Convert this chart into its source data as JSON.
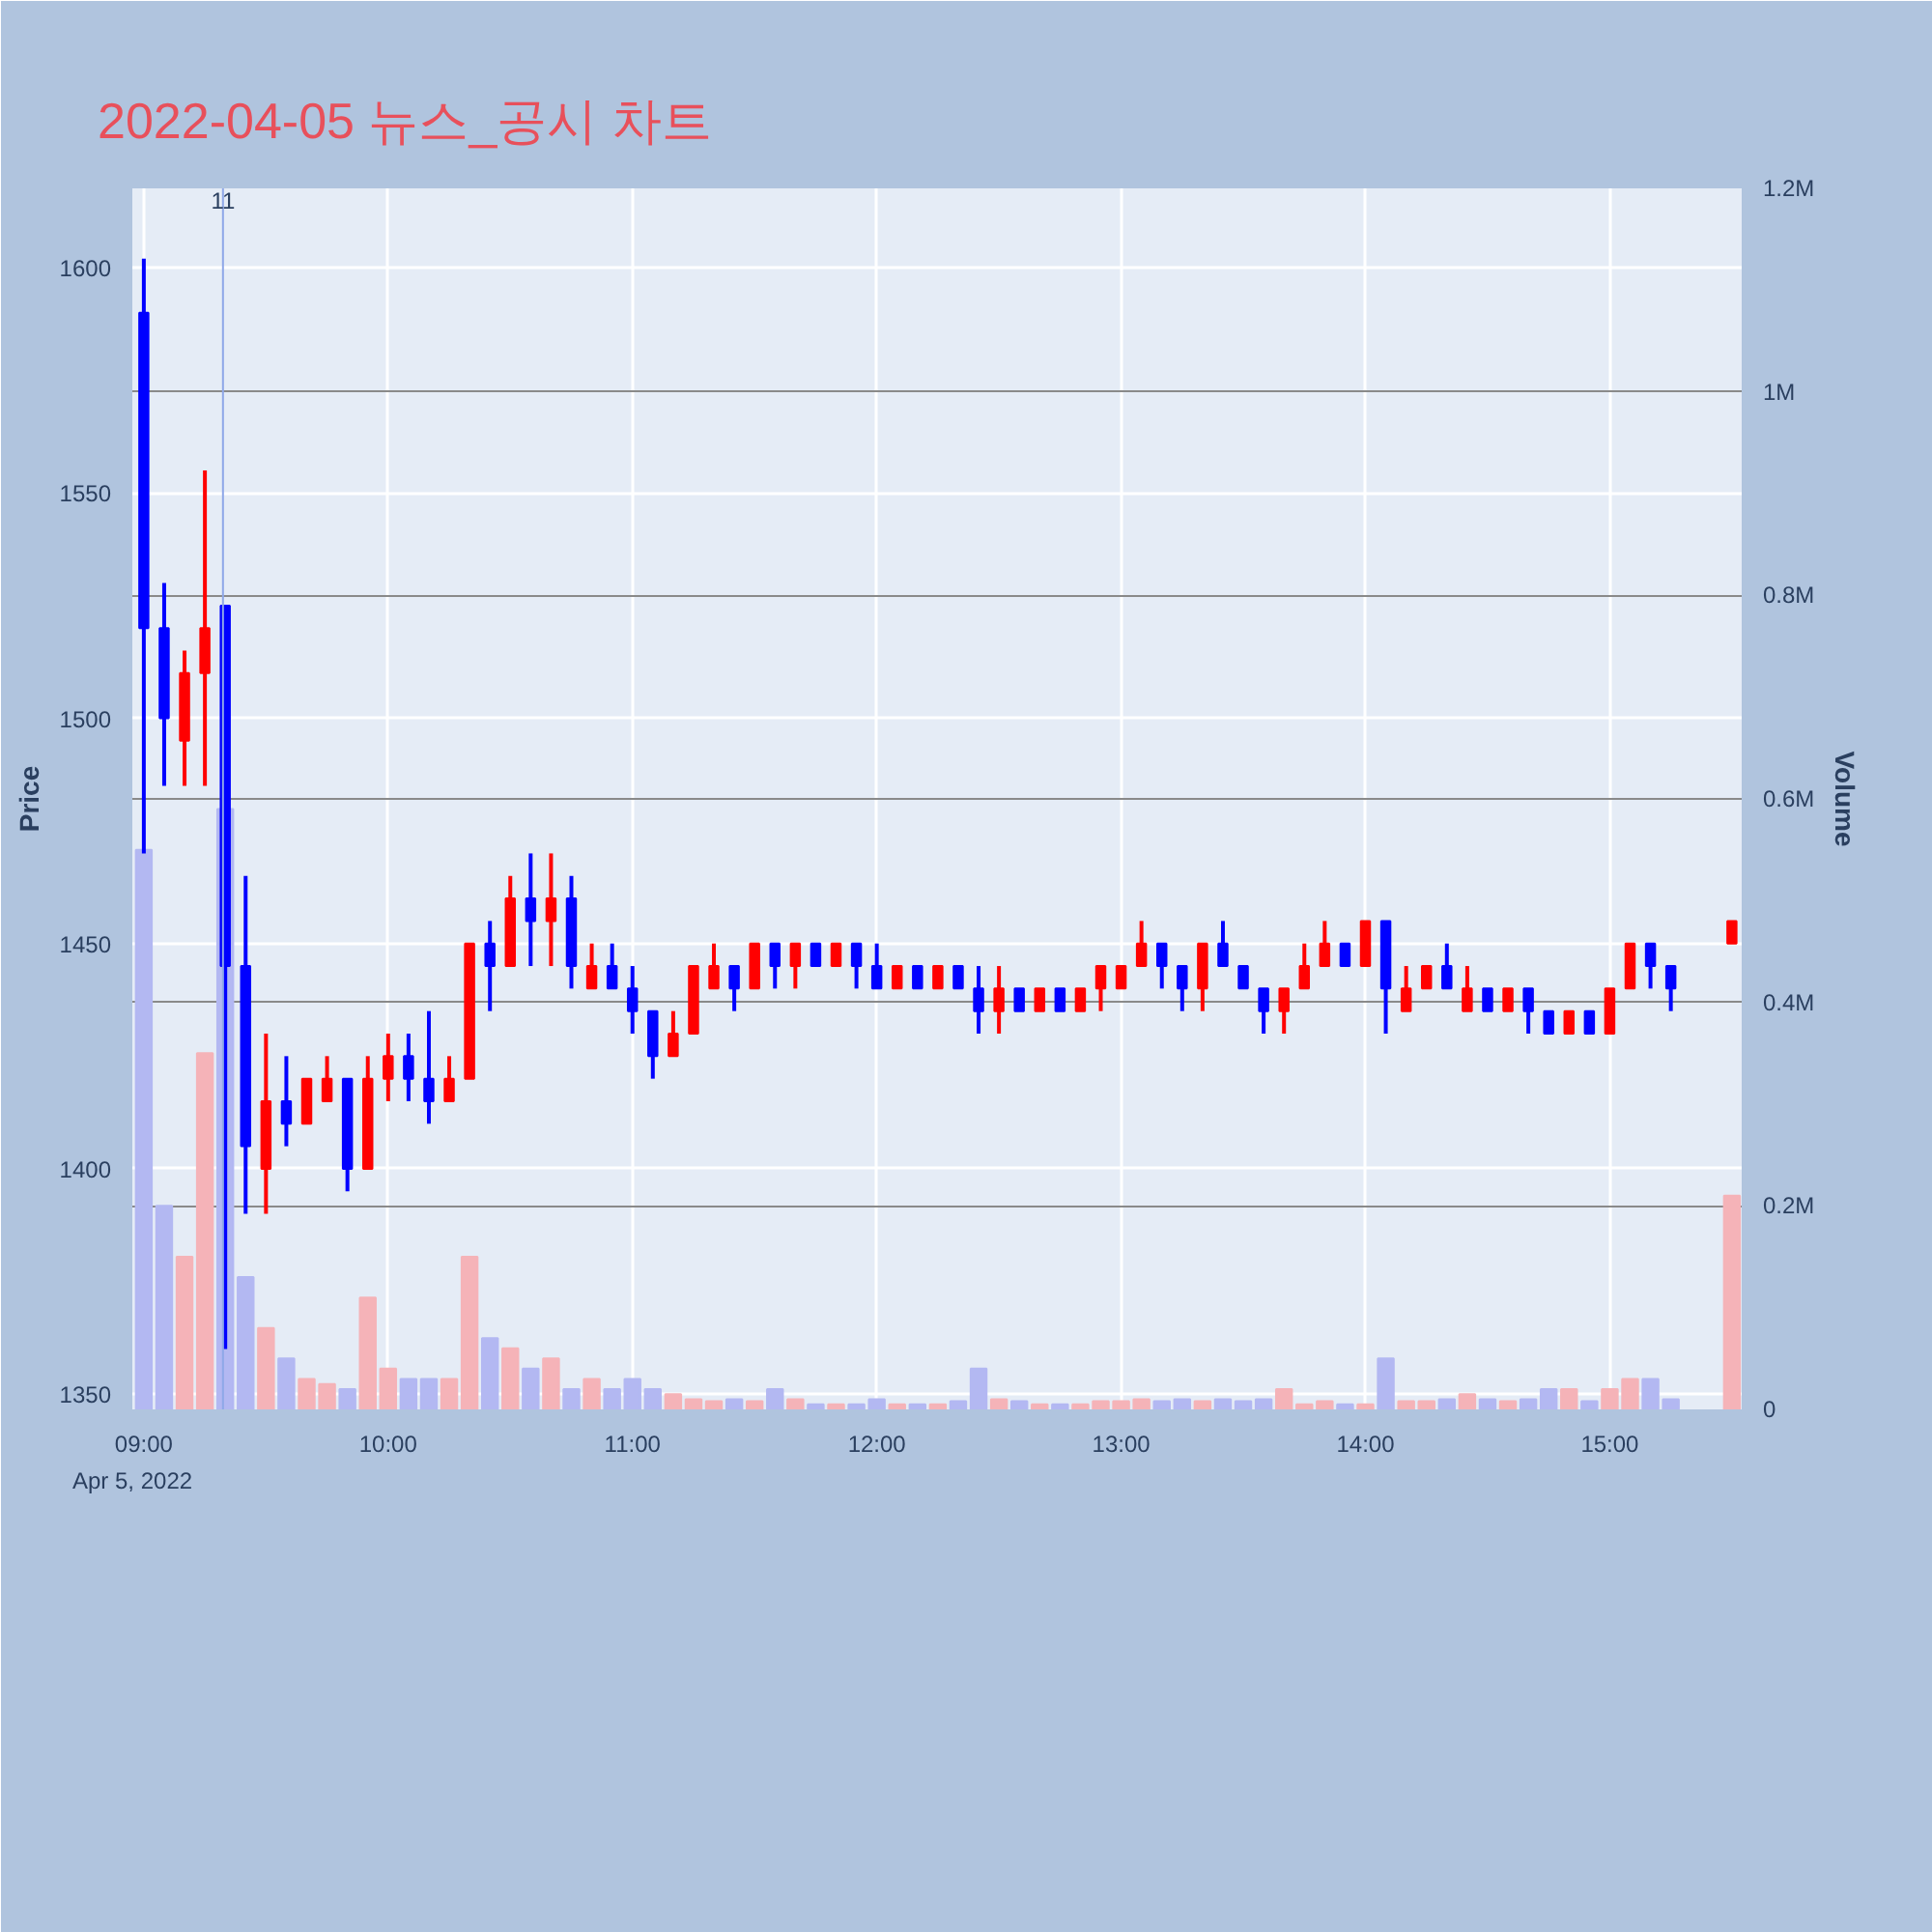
{
  "chart_data": {
    "type": "candlestick",
    "title": "2022-04-05 뉴스_공시 차트",
    "ylabel": "Price",
    "y2label": "Volume",
    "x": [
      9,
      9.0833,
      9.1667,
      9.25,
      9.3333,
      9.4167,
      9.5,
      9.5833,
      9.6667,
      9.75,
      9.8333,
      9.9167,
      10,
      10.0833,
      10.1667,
      10.25,
      10.3333,
      10.4167,
      10.5,
      10.5833,
      10.6667,
      10.75,
      10.8333,
      10.9167,
      11,
      11.0833,
      11.1667,
      11.25,
      11.3333,
      11.4167,
      11.5,
      11.5833,
      11.6667,
      11.75,
      11.8333,
      11.9167,
      12,
      12.0833,
      12.1667,
      12.25,
      12.3333,
      12.4167,
      12.5,
      12.5833,
      12.6667,
      12.75,
      12.8333,
      12.9167,
      13,
      13.0833,
      13.1667,
      13.25,
      13.3333,
      13.4167,
      13.5,
      13.5833,
      13.6667,
      13.75,
      13.8333,
      13.9167,
      14,
      14.0833,
      14.1667,
      14.25,
      14.3333,
      14.4167,
      14.5,
      14.5833,
      14.6667,
      14.75,
      14.8333,
      14.9167,
      15,
      15.0833,
      15.1667,
      15.25,
      15.5
    ],
    "xlim": [
      8.953,
      15.54
    ],
    "xticks": [
      {
        "value": 9,
        "label": "09:00"
      },
      {
        "value": 10,
        "label": "10:00"
      },
      {
        "value": 11,
        "label": "11:00"
      },
      {
        "value": 12,
        "label": "12:00"
      },
      {
        "value": 13,
        "label": "13:00"
      },
      {
        "value": 14,
        "label": "14:00"
      },
      {
        "value": 15,
        "label": "15:00"
      }
    ],
    "ylim": [
      1346.6,
      1617.6
    ],
    "yticks": [
      1350,
      1400,
      1450,
      1500,
      1550,
      1600
    ],
    "y2lim": [
      0,
      1200000
    ],
    "y2ticks": [
      {
        "value": 0,
        "label": "0"
      },
      {
        "value": 200000,
        "label": "0.2M"
      },
      {
        "value": 400000,
        "label": "0.4M"
      },
      {
        "value": 600000,
        "label": "0.6M"
      },
      {
        "value": 800000,
        "label": "0.8M"
      },
      {
        "value": 1000000,
        "label": "1M"
      },
      {
        "value": 1200000,
        "label": "1.2M"
      }
    ],
    "grid": true,
    "annotations": [
      "Apr 5, 2022",
      {
        "text": "11",
        "x": 9.324,
        "y": 1617
      }
    ],
    "ref_lines": [
      {
        "axis": "x",
        "value": 9.324,
        "color": "#8fa8e8"
      }
    ],
    "series": [
      {
        "ohlc": [
          [
            1590,
            1602,
            1470,
            1520
          ],
          [
            1520,
            1530,
            1485,
            1500
          ],
          [
            1495,
            1515,
            1485,
            1510
          ],
          [
            1510,
            1555,
            1485,
            1520
          ],
          [
            1525,
            1525,
            1360,
            1445
          ],
          [
            1445,
            1465,
            1390,
            1405
          ],
          [
            1400,
            1430,
            1390,
            1415
          ],
          [
            1415,
            1425,
            1405,
            1410
          ],
          [
            1410,
            1420,
            1410,
            1420
          ],
          [
            1415,
            1425,
            1415,
            1420
          ],
          [
            1420,
            1420,
            1395,
            1400
          ],
          [
            1400,
            1425,
            1400,
            1420
          ],
          [
            1420,
            1430,
            1415,
            1425
          ],
          [
            1425,
            1430,
            1415,
            1420
          ],
          [
            1420,
            1435,
            1410,
            1415
          ],
          [
            1415,
            1425,
            1415,
            1420
          ],
          [
            1420,
            1450,
            1420,
            1450
          ],
          [
            1450,
            1455,
            1435,
            1445
          ],
          [
            1445,
            1465,
            1445,
            1460
          ],
          [
            1460,
            1470,
            1445,
            1455
          ],
          [
            1455,
            1470,
            1445,
            1460
          ],
          [
            1460,
            1465,
            1440,
            1445
          ],
          [
            1440,
            1450,
            1440,
            1445
          ],
          [
            1445,
            1450,
            1440,
            1440
          ],
          [
            1440,
            1445,
            1430,
            1435
          ],
          [
            1435,
            1435,
            1420,
            1425
          ],
          [
            1425,
            1435,
            1425,
            1430
          ],
          [
            1430,
            1445,
            1430,
            1445
          ],
          [
            1440,
            1450,
            1440,
            1445
          ],
          [
            1445,
            1445,
            1435,
            1440
          ],
          [
            1440,
            1450,
            1440,
            1450
          ],
          [
            1450,
            1450,
            1440,
            1445
          ],
          [
            1445,
            1450,
            1440,
            1450
          ],
          [
            1450,
            1450,
            1445,
            1445
          ],
          [
            1445,
            1450,
            1445,
            1450
          ],
          [
            1450,
            1450,
            1440,
            1445
          ],
          [
            1445,
            1450,
            1440,
            1440
          ],
          [
            1440,
            1445,
            1440,
            1445
          ],
          [
            1445,
            1445,
            1440,
            1440
          ],
          [
            1440,
            1445,
            1440,
            1445
          ],
          [
            1445,
            1445,
            1440,
            1440
          ],
          [
            1440,
            1445,
            1430,
            1435
          ],
          [
            1435,
            1445,
            1430,
            1440
          ],
          [
            1440,
            1440,
            1435,
            1435
          ],
          [
            1435,
            1440,
            1435,
            1440
          ],
          [
            1440,
            1440,
            1435,
            1435
          ],
          [
            1435,
            1440,
            1435,
            1440
          ],
          [
            1440,
            1445,
            1435,
            1445
          ],
          [
            1440,
            1445,
            1440,
            1445
          ],
          [
            1445,
            1455,
            1445,
            1450
          ],
          [
            1450,
            1450,
            1440,
            1445
          ],
          [
            1445,
            1445,
            1435,
            1440
          ],
          [
            1440,
            1450,
            1435,
            1450
          ],
          [
            1450,
            1455,
            1445,
            1445
          ],
          [
            1445,
            1445,
            1440,
            1440
          ],
          [
            1440,
            1440,
            1430,
            1435
          ],
          [
            1435,
            1440,
            1430,
            1440
          ],
          [
            1440,
            1450,
            1440,
            1445
          ],
          [
            1445,
            1455,
            1445,
            1450
          ],
          [
            1450,
            1450,
            1445,
            1445
          ],
          [
            1445,
            1455,
            1445,
            1455
          ],
          [
            1455,
            1455,
            1430,
            1440
          ],
          [
            1435,
            1445,
            1435,
            1440
          ],
          [
            1440,
            1445,
            1440,
            1445
          ],
          [
            1445,
            1450,
            1440,
            1440
          ],
          [
            1435,
            1445,
            1435,
            1440
          ],
          [
            1440,
            1440,
            1435,
            1435
          ],
          [
            1435,
            1440,
            1435,
            1440
          ],
          [
            1440,
            1440,
            1430,
            1435
          ],
          [
            1435,
            1435,
            1430,
            1430
          ],
          [
            1430,
            1435,
            1430,
            1435
          ],
          [
            1435,
            1435,
            1430,
            1430
          ],
          [
            1430,
            1440,
            1430,
            1440
          ],
          [
            1440,
            1450,
            1440,
            1450
          ],
          [
            1450,
            1450,
            1440,
            1445
          ],
          [
            1445,
            1445,
            1435,
            1440
          ],
          [
            1450,
            1455,
            1450,
            1455
          ]
        ],
        "colors": [
          "#0000ff",
          "#0000ff",
          "#ff0000",
          "#ff0000",
          "#0000ff",
          "#0000ff",
          "#ff0000",
          "#0000ff",
          "#ff0000",
          "#ff0000",
          "#0000ff",
          "#ff0000",
          "#ff0000",
          "#0000ff",
          "#0000ff",
          "#ff0000",
          "#ff0000",
          "#0000ff",
          "#ff0000",
          "#0000ff",
          "#ff0000",
          "#0000ff",
          "#ff0000",
          "#0000ff",
          "#0000ff",
          "#0000ff",
          "#ff0000",
          "#ff0000",
          "#ff0000",
          "#0000ff",
          "#ff0000",
          "#0000ff",
          "#ff0000",
          "#0000ff",
          "#ff0000",
          "#0000ff",
          "#0000ff",
          "#ff0000",
          "#0000ff",
          "#ff0000",
          "#0000ff",
          "#0000ff",
          "#ff0000",
          "#0000ff",
          "#ff0000",
          "#0000ff",
          "#ff0000",
          "#ff0000",
          "#ff0000",
          "#ff0000",
          "#0000ff",
          "#0000ff",
          "#ff0000",
          "#0000ff",
          "#0000ff",
          "#0000ff",
          "#ff0000",
          "#ff0000",
          "#ff0000",
          "#0000ff",
          "#ff0000",
          "#0000ff",
          "#ff0000",
          "#ff0000",
          "#0000ff",
          "#ff0000",
          "#0000ff",
          "#ff0000",
          "#0000ff",
          "#0000ff",
          "#ff0000",
          "#0000ff",
          "#ff0000",
          "#ff0000",
          "#0000ff",
          "#0000ff",
          "#ff0000"
        ]
      },
      {
        "type": "bar",
        "axis": "y2",
        "values": [
          550000,
          200000,
          150000,
          350000,
          590000,
          130000,
          80000,
          50000,
          30000,
          25000,
          20000,
          110000,
          40000,
          30000,
          30000,
          30000,
          150000,
          70000,
          60000,
          40000,
          50000,
          20000,
          30000,
          20000,
          30000,
          20000,
          15000,
          10000,
          8000,
          10000,
          8000,
          20000,
          10000,
          5000,
          5000,
          5000,
          10000,
          5000,
          5000,
          5000,
          8000,
          40000,
          10000,
          8000,
          5000,
          5000,
          5000,
          8000,
          8000,
          10000,
          8000,
          10000,
          8000,
          10000,
          8000,
          10000,
          20000,
          5000,
          8000,
          5000,
          5000,
          50000,
          8000,
          8000,
          10000,
          15000,
          10000,
          8000,
          10000,
          20000,
          20000,
          8000,
          20000,
          30000,
          30000,
          10000,
          210000
        ],
        "colors": [
          "#b3b8f2",
          "#b3b8f2",
          "#f5b3b8",
          "#f5b3b8",
          "#b3b8f2",
          "#b3b8f2",
          "#f5b3b8",
          "#b3b8f2",
          "#f5b3b8",
          "#f5b3b8",
          "#b3b8f2",
          "#f5b3b8",
          "#f5b3b8",
          "#b3b8f2",
          "#b3b8f2",
          "#f5b3b8",
          "#f5b3b8",
          "#b3b8f2",
          "#f5b3b8",
          "#b3b8f2",
          "#f5b3b8",
          "#b3b8f2",
          "#f5b3b8",
          "#b3b8f2",
          "#b3b8f2",
          "#b3b8f2",
          "#f5b3b8",
          "#f5b3b8",
          "#f5b3b8",
          "#b3b8f2",
          "#f5b3b8",
          "#b3b8f2",
          "#f5b3b8",
          "#b3b8f2",
          "#f5b3b8",
          "#b3b8f2",
          "#b3b8f2",
          "#f5b3b8",
          "#b3b8f2",
          "#f5b3b8",
          "#b3b8f2",
          "#b3b8f2",
          "#f5b3b8",
          "#b3b8f2",
          "#f5b3b8",
          "#b3b8f2",
          "#f5b3b8",
          "#f5b3b8",
          "#f5b3b8",
          "#f5b3b8",
          "#b3b8f2",
          "#b3b8f2",
          "#f5b3b8",
          "#b3b8f2",
          "#b3b8f2",
          "#b3b8f2",
          "#f5b3b8",
          "#f5b3b8",
          "#f5b3b8",
          "#b3b8f2",
          "#f5b3b8",
          "#b3b8f2",
          "#f5b3b8",
          "#f5b3b8",
          "#b3b8f2",
          "#f5b3b8",
          "#b3b8f2",
          "#f5b3b8",
          "#b3b8f2",
          "#b3b8f2",
          "#f5b3b8",
          "#b3b8f2",
          "#f5b3b8",
          "#f5b3b8",
          "#b3b8f2",
          "#b3b8f2",
          "#f5b3b8"
        ]
      }
    ]
  }
}
